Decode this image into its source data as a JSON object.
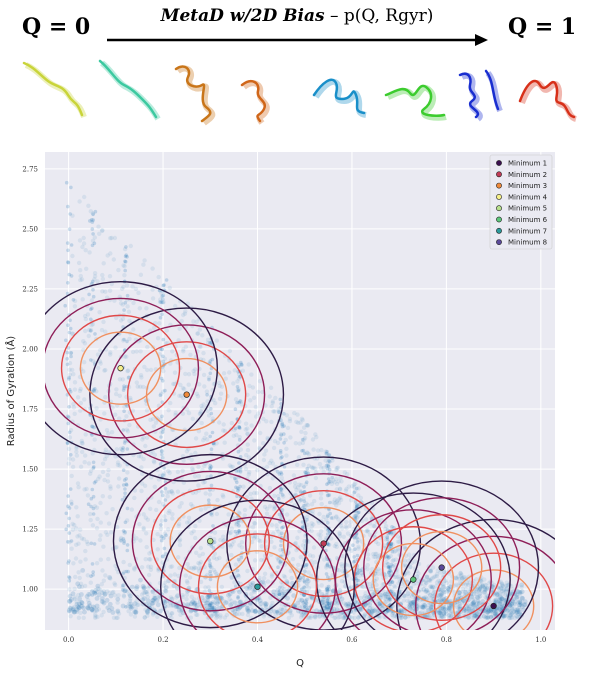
{
  "header": {
    "left_label": "Q = 0",
    "right_label": "Q = 1",
    "title_bias": "MetaD w/2D Bias",
    "title_dash": " – ",
    "title_prob": "p(Q, Rgyr)"
  },
  "structures": [
    {
      "name": "structure-1",
      "color": "#c9d43a"
    },
    {
      "name": "structure-2",
      "color": "#3cc9a0"
    },
    {
      "name": "structure-3",
      "color": "#c9761a"
    },
    {
      "name": "structure-4",
      "color": "#d0661a"
    },
    {
      "name": "structure-5",
      "color": "#1a8fc9"
    },
    {
      "name": "structure-6",
      "color": "#3ccc2e"
    },
    {
      "name": "structure-7",
      "color": "#1a2fd0"
    },
    {
      "name": "structure-8",
      "color": "#d8301a"
    }
  ],
  "chart_data": {
    "type": "scatter",
    "title": "",
    "xlabel": "Q",
    "ylabel": "Radius of Gyration (Å)",
    "xlim": [
      -0.05,
      1.03
    ],
    "ylim": [
      0.83,
      2.82
    ],
    "x_ticks": [
      "0.0",
      "0.2",
      "0.4",
      "0.6",
      "0.8",
      "1.0"
    ],
    "y_ticks": [
      "1.00",
      "1.25",
      "1.50",
      "1.75",
      "2.00",
      "2.25",
      "2.50",
      "2.75"
    ],
    "grid": true,
    "legend_placement": "top-right",
    "background_points_color": "#1f77b4",
    "contour_colors": [
      "#2d1b45",
      "#8e1e58",
      "#e04848",
      "#f09060"
    ],
    "series": [
      {
        "name": "Minimum 1",
        "color": "#3b0f4f",
        "x": 0.9,
        "y": 0.93
      },
      {
        "name": "Minimum 2",
        "color": "#c23b57",
        "x": 0.54,
        "y": 1.19
      },
      {
        "name": "Minimum 3",
        "color": "#f08a3b",
        "x": 0.25,
        "y": 1.81
      },
      {
        "name": "Minimum 4",
        "color": "#f6f08a",
        "x": 0.11,
        "y": 1.92
      },
      {
        "name": "Minimum 5",
        "color": "#b7e08d",
        "x": 0.3,
        "y": 1.2
      },
      {
        "name": "Minimum 6",
        "color": "#5cc77a",
        "x": 0.73,
        "y": 1.04
      },
      {
        "name": "Minimum 7",
        "color": "#2a9b9c",
        "x": 0.4,
        "y": 1.01
      },
      {
        "name": "Minimum 8",
        "color": "#5b4a9a",
        "x": 0.79,
        "y": 1.09
      }
    ]
  }
}
